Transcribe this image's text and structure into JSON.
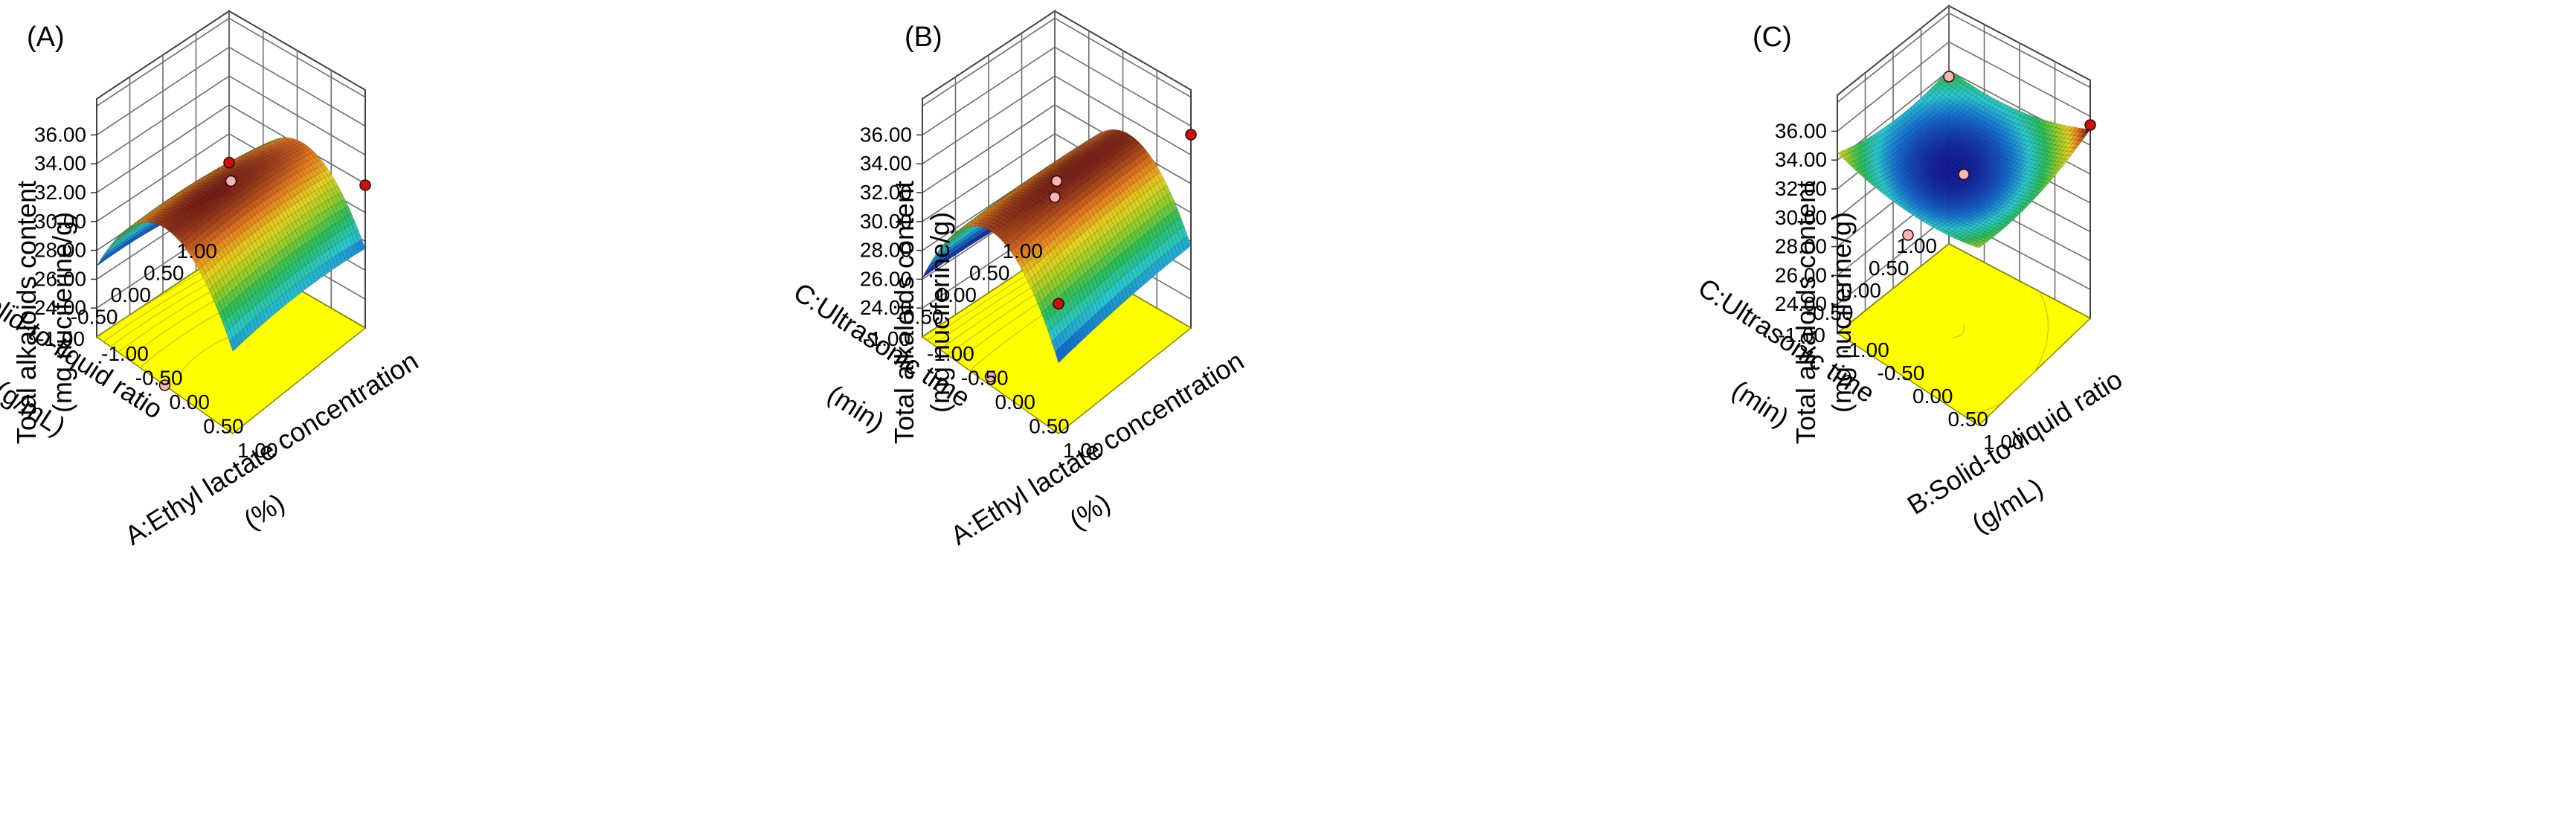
{
  "colors": {
    "floor": "#ffff00",
    "design_point": "#cc1111",
    "design_point_below": "#f2b8b8"
  },
  "chart_data": [
    {
      "type": "surface3d",
      "panel_label": "(A)",
      "zlabel_line1": "Total alkaloids content",
      "zlabel_line2": "(mg nuciferine/g)",
      "xlabel": "A:Ethyl lactate concentration",
      "xunit": "(%)",
      "ylabel": "B:Solid-to-liquid ratio",
      "yunit": "(g/mL)",
      "xlim": [
        -1,
        1
      ],
      "ylim": [
        -1,
        1
      ],
      "zlim": [
        22,
        36
      ],
      "x_ticks": [
        "-1.00",
        "-0.50",
        "0.00",
        "0.50",
        "1.00"
      ],
      "y_ticks": [
        "-1.00",
        "-0.50",
        "0.00",
        "0.50",
        "1.00"
      ],
      "z_ticks": [
        "24.00",
        "26.00",
        "28.00",
        "30.00",
        "32.00",
        "34.00",
        "36.00"
      ],
      "model": {
        "b0": 33.0,
        "bx": 0.6,
        "by": -0.3,
        "bxx": -5.6,
        "byy": -0.4,
        "bxy": 0.2
      },
      "design_points": [
        {
          "x": -1,
          "y": 1,
          "z": 28.0
        },
        {
          "x": 0,
          "y": 0,
          "z": 32.8
        },
        {
          "x": 1,
          "y": 1,
          "z": 31.9
        },
        {
          "x": 0,
          "y": -1,
          "z": 22.0
        }
      ]
    },
    {
      "type": "surface3d",
      "panel_label": "(B)",
      "zlabel_line1": "Total alkaloids content",
      "zlabel_line2": "(mg nuciferine/g)",
      "xlabel": "A:Ethyl lactate concentration",
      "xunit": "(%)",
      "ylabel": "C:Ultrasonic time",
      "yunit": "(min)",
      "xlim": [
        -1,
        1
      ],
      "ylim": [
        -1,
        1
      ],
      "zlim": [
        22,
        36
      ],
      "x_ticks": [
        "-1.00",
        "-0.50",
        "0.00",
        "0.50",
        "1.00"
      ],
      "y_ticks": [
        "-1.00",
        "-0.50",
        "0.00",
        "0.50",
        "1.00"
      ],
      "z_ticks": [
        "24.00",
        "26.00",
        "28.00",
        "30.00",
        "32.00",
        "34.00",
        "36.00"
      ],
      "model": {
        "b0": 33.0,
        "bx": 0.7,
        "by": 0.1,
        "bxx": -6.2,
        "byy": -0.2,
        "bxy": 0.3
      },
      "design_points": [
        {
          "x": -1,
          "y": 1,
          "z": 25.6
        },
        {
          "x": 0,
          "y": 0,
          "z": 32.8
        },
        {
          "x": 1,
          "y": 1,
          "z": 35.4
        },
        {
          "x": 1,
          "y": -1,
          "z": 31.0
        },
        {
          "x": 0,
          "y": -1,
          "z": 22.6
        }
      ]
    },
    {
      "type": "surface3d",
      "panel_label": "(C)",
      "zlabel_line1": "Total alkaloids content",
      "zlabel_line2": "(mg nuciferine/g)",
      "xlabel": "B:Solid-to-liquid ratio",
      "xunit": "(g/mL)",
      "ylabel": "C:Ultrasonic time",
      "yunit": "(min)",
      "xlim": [
        -1,
        1
      ],
      "ylim": [
        -1,
        1
      ],
      "zlim": [
        22,
        36
      ],
      "x_ticks": [
        "-1.00",
        "-0.50",
        "0.00",
        "0.50",
        "1.00"
      ],
      "y_ticks": [
        "-1.00",
        "-0.50",
        "0.00",
        "0.50",
        "1.00"
      ],
      "z_ticks": [
        "24.00",
        "26.00",
        "28.00",
        "30.00",
        "32.00",
        "34.00",
        "36.00"
      ],
      "model": {
        "b0": 33.0,
        "bx": 0.2,
        "by": 0.1,
        "bxx": 0.8,
        "byy": 0.7,
        "bxy": 0.3
      },
      "design_points": [
        {
          "x": -1,
          "y": 1,
          "z": 33.6
        },
        {
          "x": 0,
          "y": 0,
          "z": 32.8
        },
        {
          "x": 1,
          "y": 1,
          "z": 35.4
        },
        {
          "x": 0,
          "y": -1,
          "z": 32.0
        }
      ]
    }
  ]
}
